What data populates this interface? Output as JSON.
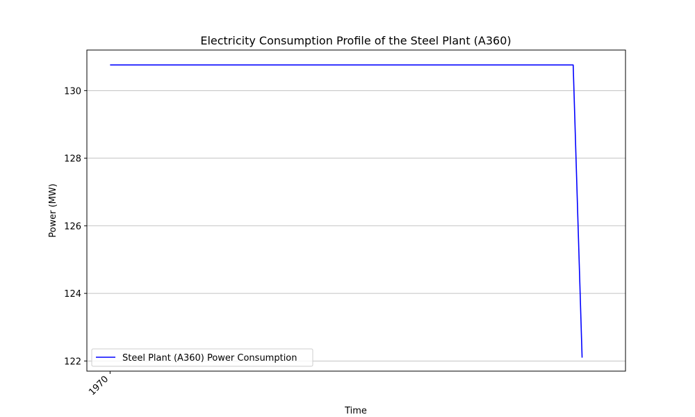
{
  "chart_data": {
    "type": "line",
    "title": "Electricity Consumption Profile of the Steel Plant (A360)",
    "xlabel": "Time",
    "ylabel": "Power (MW)",
    "x_axis_kind": "time",
    "x_ticks": [
      "1970"
    ],
    "ylim": [
      121.7,
      131.2
    ],
    "y_ticks": [
      122,
      124,
      126,
      128,
      130
    ],
    "grid": "y",
    "legend_position": "lower-left",
    "series": [
      {
        "name": "Steel Plant (A360) Power Consumption",
        "color": "#0000ff",
        "x": [
          0,
          0.8985,
          0.9158
        ],
        "y": [
          130.76,
          130.76,
          122.1
        ]
      }
    ]
  }
}
